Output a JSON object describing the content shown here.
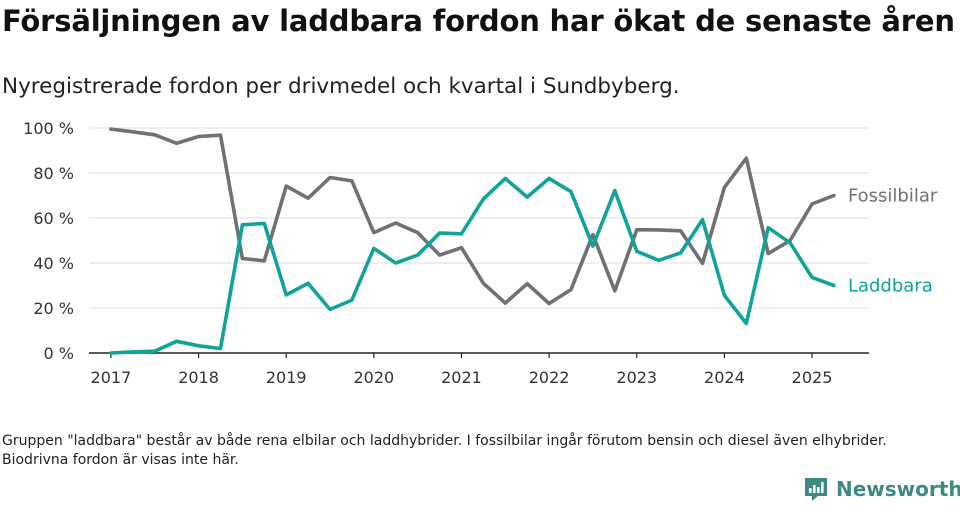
{
  "header": {
    "title": "Försäljningen av laddbara fordon har ökat de senaste åren",
    "subtitle": "Nyregistrerade fordon per drivmedel och kvartal i Sundbyberg."
  },
  "footnote": "Gruppen \"laddbara\" består av både rena elbilar och laddhybrider. I fossilbilar ingår förutom bensin och diesel även elhybrider. Biodrivna fordon är visas inte här.",
  "brand": {
    "name": "Newsworthy",
    "icon": "newsworthy-logo-icon",
    "color": "#3d8a82"
  },
  "chart_data": {
    "type": "line",
    "title": "Försäljningen av laddbara fordon har ökat de senaste åren",
    "subtitle": "Nyregistrerade fordon per drivmedel och kvartal i Sundbyberg.",
    "xlabel": "",
    "ylabel": "",
    "ylim": [
      0,
      100
    ],
    "xlim": [
      2016.75,
      2025.65
    ],
    "yticks": [
      0,
      20,
      40,
      60,
      80,
      100
    ],
    "ytick_labels": [
      "0 %",
      "20 %",
      "40 %",
      "60 %",
      "80 %",
      "100 %"
    ],
    "xticks": [
      2017,
      2018,
      2019,
      2020,
      2021,
      2022,
      2023,
      2024,
      2025
    ],
    "xtick_labels": [
      "2017",
      "2018",
      "2019",
      "2020",
      "2021",
      "2022",
      "2023",
      "2024",
      "2025"
    ],
    "grid": "horizontal",
    "legend": "direct labels at right end of lines",
    "x": [
      2017.0,
      2017.25,
      2017.5,
      2017.75,
      2018.0,
      2018.25,
      2018.5,
      2018.75,
      2019.0,
      2019.25,
      2019.5,
      2019.75,
      2020.0,
      2020.25,
      2020.5,
      2020.75,
      2021.0,
      2021.25,
      2021.5,
      2021.75,
      2022.0,
      2022.25,
      2022.5,
      2022.75,
      2023.0,
      2023.25,
      2023.5,
      2023.75,
      2024.0,
      2024.25,
      2024.5,
      2024.75,
      2025.0,
      2025.25
    ],
    "series": [
      {
        "name": "Fossilbilar",
        "color": "#707075",
        "values": [
          99.5,
          98.3,
          97.0,
          93.2,
          96.2,
          96.8,
          42.0,
          41.0,
          74.2,
          68.8,
          78.0,
          76.5,
          53.5,
          57.8,
          53.5,
          43.5,
          46.8,
          31.0,
          22.2,
          30.8,
          22.0,
          28.2,
          52.6,
          27.6,
          54.8,
          54.7,
          54.3,
          39.8,
          73.6,
          86.6,
          44.2,
          50.0,
          66.2,
          70.0
        ]
      },
      {
        "name": "Laddbara",
        "color": "#0fa399",
        "values": [
          0.0,
          0.5,
          0.8,
          5.2,
          3.2,
          2.0,
          57.0,
          57.6,
          25.8,
          31.0,
          19.4,
          23.5,
          46.5,
          40.0,
          43.5,
          53.3,
          53.0,
          68.5,
          77.6,
          69.3,
          77.6,
          71.7,
          47.5,
          72.2,
          45.2,
          41.2,
          44.5,
          59.3,
          25.6,
          13.1,
          55.7,
          49.0,
          33.6,
          30.0
        ]
      }
    ]
  }
}
